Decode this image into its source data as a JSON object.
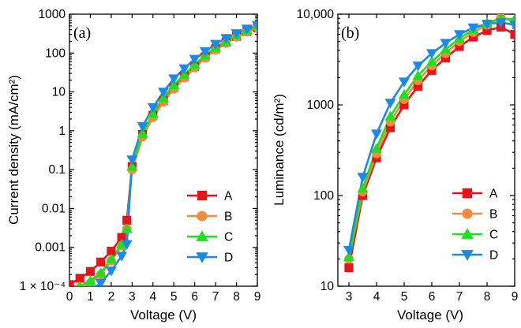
{
  "chart_data": [
    {
      "type": "line",
      "panel_label": "(a)",
      "xlabel": "Voltage (V)",
      "ylabel": "Current density (mA/cm²)",
      "yscale": "log",
      "xlim": [
        0,
        9
      ],
      "ylim": [
        0.0001,
        1000
      ],
      "x_ticks": [
        0,
        1,
        2,
        3,
        4,
        5,
        6,
        7,
        8,
        9
      ],
      "y_ticks": [
        {
          "value": 0.0001,
          "label": "1 × 10⁻⁴"
        },
        {
          "value": 0.001,
          "label": "0.001"
        },
        {
          "value": 0.01,
          "label": "0.01"
        },
        {
          "value": 0.1,
          "label": "0.1"
        },
        {
          "value": 1,
          "label": "1"
        },
        {
          "value": 10,
          "label": "10"
        },
        {
          "value": 100,
          "label": "100"
        },
        {
          "value": 1000,
          "label": "1000"
        }
      ],
      "legend_position": "bottom-right",
      "series": [
        {
          "name": "A",
          "color": "#e8141b",
          "marker": "square",
          "x": [
            0,
            0.5,
            1,
            1.5,
            2,
            2.5,
            2.75,
            3,
            3.5,
            4,
            4.5,
            5,
            5.5,
            6,
            6.5,
            7,
            7.5,
            8,
            8.5,
            9
          ],
          "y": [
            0.00011,
            0.00016,
            0.00024,
            0.00042,
            0.0008,
            0.0018,
            0.005,
            0.12,
            0.8,
            2.5,
            6,
            13,
            25,
            45,
            80,
            130,
            190,
            270,
            360,
            450
          ]
        },
        {
          "name": "B",
          "color": "#f58a3d",
          "marker": "circle",
          "x": [
            0.5,
            1,
            1.5,
            2,
            2.5,
            2.75,
            3,
            3.5,
            4,
            4.5,
            5,
            5.5,
            6,
            6.5,
            7,
            7.5,
            8,
            8.5,
            9
          ],
          "y": [
            9e-05,
            0.00012,
            0.0002,
            0.00045,
            0.0011,
            0.003,
            0.1,
            0.7,
            2.2,
            5.5,
            12,
            23,
            42,
            75,
            120,
            180,
            260,
            350,
            460
          ]
        },
        {
          "name": "C",
          "color": "#1fe01f",
          "marker": "triangle-up",
          "x": [
            0.5,
            1,
            1.5,
            2,
            2.5,
            2.75,
            3,
            3.5,
            4,
            4.5,
            5,
            5.5,
            6,
            6.5,
            7,
            7.5,
            8,
            8.5,
            9
          ],
          "y": [
            0.0001,
            0.00014,
            0.00022,
            0.0005,
            0.0012,
            0.003,
            0.12,
            0.85,
            2.8,
            7,
            15,
            28,
            50,
            88,
            140,
            200,
            290,
            390,
            500
          ]
        },
        {
          "name": "D",
          "color": "#1a8ae8",
          "marker": "triangle-down",
          "x": [
            0.5,
            1,
            1.5,
            2,
            2.5,
            2.75,
            3,
            3.5,
            4,
            4.5,
            5,
            5.5,
            6,
            6.5,
            7,
            7.5,
            8,
            8.5,
            9
          ],
          "y": [
            6e-05,
            8e-05,
            0.00012,
            0.00025,
            0.0006,
            0.0012,
            0.18,
            1.3,
            4,
            10,
            22,
            40,
            70,
            110,
            170,
            240,
            320,
            420,
            520
          ]
        }
      ]
    },
    {
      "type": "line",
      "panel_label": "(b)",
      "xlabel": "Voltage (V)",
      "ylabel": "Luminance (cd/m²)",
      "yscale": "log",
      "xlim": [
        2.6,
        9
      ],
      "ylim": [
        10,
        10000
      ],
      "x_ticks": [
        3,
        4,
        5,
        6,
        7,
        8,
        9
      ],
      "y_ticks": [
        {
          "value": 10,
          "label": "10"
        },
        {
          "value": 100,
          "label": "100"
        },
        {
          "value": 1000,
          "label": "1000"
        },
        {
          "value": 10000,
          "label": "10,000"
        }
      ],
      "legend_position": "bottom-right",
      "series": [
        {
          "name": "A",
          "color": "#e8141b",
          "marker": "square",
          "x": [
            3,
            3.5,
            4,
            4.5,
            5,
            5.5,
            6,
            6.5,
            7,
            7.5,
            8,
            8.5,
            9
          ],
          "y": [
            16,
            100,
            260,
            560,
            1000,
            1600,
            2400,
            3300,
            4400,
            5600,
            6600,
            7200,
            6000
          ]
        },
        {
          "name": "B",
          "color": "#f58a3d",
          "marker": "circle",
          "x": [
            3,
            3.5,
            4,
            4.5,
            5,
            5.5,
            6,
            6.5,
            7,
            7.5,
            8,
            8.5,
            9
          ],
          "y": [
            20,
            110,
            290,
            650,
            1150,
            1850,
            2700,
            3700,
            5000,
            6300,
            7600,
            9200,
            8300
          ]
        },
        {
          "name": "C",
          "color": "#1fe01f",
          "marker": "triangle-up",
          "x": [
            3,
            3.5,
            4,
            4.5,
            5,
            5.5,
            6,
            6.5,
            7,
            7.5,
            8,
            8.5,
            9
          ],
          "y": [
            21,
            120,
            330,
            750,
            1300,
            2100,
            3000,
            4100,
            5400,
            6800,
            8000,
            9000,
            8800
          ]
        },
        {
          "name": "D",
          "color": "#1a8ae8",
          "marker": "triangle-down",
          "x": [
            3,
            3.5,
            4,
            4.5,
            5,
            5.5,
            6,
            6.5,
            7,
            7.5,
            8,
            8.5,
            9
          ],
          "y": [
            25,
            160,
            480,
            1050,
            1800,
            2700,
            3700,
            4800,
            6000,
            7100,
            7800,
            8100,
            7600
          ]
        }
      ]
    }
  ]
}
